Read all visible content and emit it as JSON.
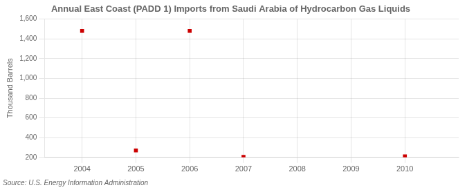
{
  "chart_data": {
    "type": "scatter",
    "title": "Annual East Coast (PADD 1) Imports from Saudi Arabia of Hydrocarbon Gas Liquids",
    "y_label": "Thousand Barrels",
    "annotations": [
      "Source: U.S. Energy Information Administration"
    ],
    "x": [
      2004,
      2005,
      2006,
      2007,
      2010
    ],
    "values": [
      1480,
      270,
      1480,
      205,
      210
    ],
    "color": "#cc0000",
    "marker": "square",
    "xlim": [
      2003.3,
      2011.0
    ],
    "xticks": [
      2004,
      2005,
      2006,
      2007,
      2008,
      2009,
      2010
    ],
    "ylim": [
      200,
      1600
    ],
    "yticks": [
      200,
      400,
      600,
      800,
      {
        "value": 1000,
        "label": "1,000"
      },
      {
        "value": 1200,
        "label": "1,200"
      },
      {
        "value": 1400,
        "label": "1,400"
      },
      {
        "value": 1600,
        "label": "1,600"
      }
    ],
    "grid": true
  }
}
